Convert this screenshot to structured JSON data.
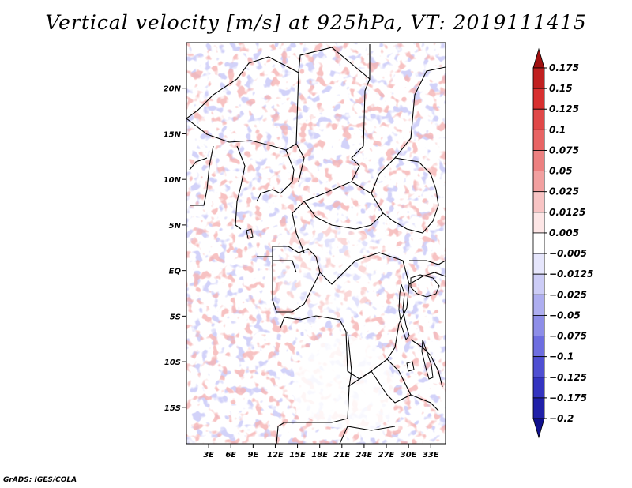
{
  "title": "Vertical velocity [m/s] at 925hPa, VT: 2019111415",
  "credit": "GrADS: IGES/COLA",
  "map": {
    "variable": "vertical velocity",
    "units": "m/s",
    "level": "925hPa",
    "valid_time": "2019111415",
    "lon_range": [
      0,
      35
    ],
    "lat_range": [
      -19,
      25
    ],
    "lat_ticks": [
      {
        "value": 20,
        "label": "20N"
      },
      {
        "value": 15,
        "label": "15N"
      },
      {
        "value": 10,
        "label": "10N"
      },
      {
        "value": 5,
        "label": "5N"
      },
      {
        "value": 0,
        "label": "EQ"
      },
      {
        "value": -5,
        "label": "5S"
      },
      {
        "value": -10,
        "label": "10S"
      },
      {
        "value": -15,
        "label": "15S"
      }
    ],
    "lon_ticks": [
      {
        "value": 3,
        "label": "3E"
      },
      {
        "value": 6,
        "label": "6E"
      },
      {
        "value": 9,
        "label": "9E"
      },
      {
        "value": 12,
        "label": "12E"
      },
      {
        "value": 15,
        "label": "15E"
      },
      {
        "value": 18,
        "label": "18E"
      },
      {
        "value": 21,
        "label": "21E"
      },
      {
        "value": 24,
        "label": "24E"
      },
      {
        "value": 27,
        "label": "27E"
      },
      {
        "value": 30,
        "label": "30E"
      },
      {
        "value": 33,
        "label": "33E"
      }
    ]
  },
  "colorbar": {
    "levels": [
      "0.175",
      "0.15",
      "0.125",
      "0.1",
      "0.075",
      "0.05",
      "0.025",
      "0.0125",
      "0.005",
      "-0.005",
      "-0.0125",
      "-0.025",
      "-0.05",
      "-0.075",
      "-0.1",
      "-0.125",
      "-0.175",
      "-0.2"
    ],
    "colors": [
      "#a01010",
      "#c02020",
      "#d83030",
      "#e04848",
      "#e86464",
      "#ec8080",
      "#f2a0a0",
      "#f8c4c4",
      "#fde6e6",
      "#ffffff",
      "#e6e6fc",
      "#ccccf6",
      "#aeaef0",
      "#8e8ee8",
      "#6e6ee0",
      "#4f4fd2",
      "#3434c0",
      "#2020a8",
      "#10108e"
    ],
    "top_arrow_color": "#a01010",
    "bottom_arrow_color": "#10108e"
  }
}
